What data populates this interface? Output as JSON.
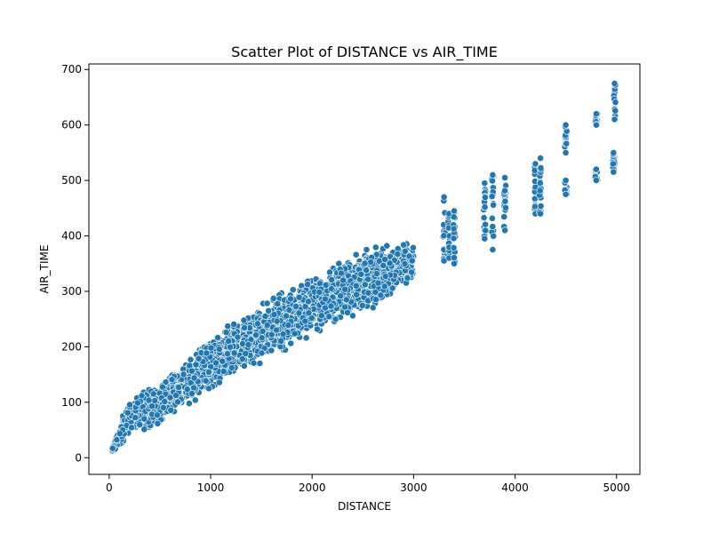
{
  "chart_data": {
    "type": "scatter",
    "title": "Scatter Plot of DISTANCE vs AIR_TIME",
    "xlabel": "DISTANCE",
    "ylabel": "AIR_TIME",
    "xlim": [
      -200,
      5230
    ],
    "ylim": [
      -30,
      710
    ],
    "x_ticks": [
      0,
      1000,
      2000,
      3000,
      4000,
      5000
    ],
    "y_ticks": [
      0,
      100,
      200,
      300,
      400,
      500,
      600,
      700
    ],
    "grid": false,
    "marker_color": "#1f77b4",
    "main_cloud": {
      "description_range": "dense band",
      "x_range": [
        30,
        3000
      ],
      "lower_edge": [
        [
          30,
          8
        ],
        [
          500,
          55
        ],
        [
          1000,
          110
        ],
        [
          1500,
          160
        ],
        [
          2000,
          215
        ],
        [
          2500,
          250
        ],
        [
          3000,
          310
        ]
      ],
      "upper_edge": [
        [
          30,
          20
        ],
        [
          200,
          120
        ],
        [
          500,
          140
        ],
        [
          1000,
          225
        ],
        [
          1500,
          285
        ],
        [
          2000,
          335
        ],
        [
          2500,
          390
        ],
        [
          3000,
          395
        ]
      ]
    },
    "clusters": [
      {
        "x": 3300,
        "y_min": 355,
        "y_max": 470
      },
      {
        "x": 3350,
        "y_min": 360,
        "y_max": 440
      },
      {
        "x": 3400,
        "y_min": 350,
        "y_max": 445
      },
      {
        "x": 3700,
        "y_min": 395,
        "y_max": 495
      },
      {
        "x": 3780,
        "y_min": 375,
        "y_max": 510
      },
      {
        "x": 3900,
        "y_min": 410,
        "y_max": 505
      },
      {
        "x": 4200,
        "y_min": 440,
        "y_max": 530
      },
      {
        "x": 4250,
        "y_min": 440,
        "y_max": 540
      },
      {
        "x": 4500,
        "y_min": 475,
        "y_max": 500
      },
      {
        "x": 4500,
        "y_min": 550,
        "y_max": 600
      },
      {
        "x": 4800,
        "y_min": 500,
        "y_max": 520
      },
      {
        "x": 4800,
        "y_min": 600,
        "y_max": 620
      },
      {
        "x": 4970,
        "y_min": 515,
        "y_max": 550
      },
      {
        "x": 4980,
        "y_min": 610,
        "y_max": 675
      }
    ]
  }
}
